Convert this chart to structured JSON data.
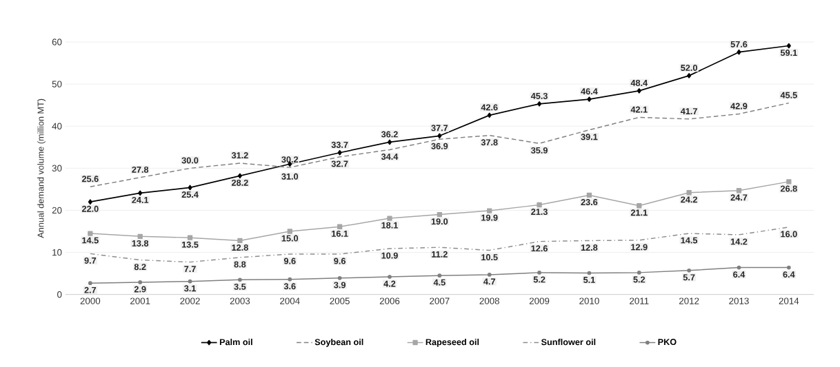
{
  "chart_data": {
    "type": "line",
    "ylabel": "Annual demand volume (million MT)",
    "categories": [
      "2000",
      "2001",
      "2002",
      "2003",
      "2004",
      "2005",
      "2006",
      "2007",
      "2008",
      "2009",
      "2010",
      "2011",
      "2012",
      "2013",
      "2014"
    ],
    "ylim": [
      0,
      60
    ],
    "yticks": [
      0,
      10,
      20,
      30,
      40,
      50,
      60
    ],
    "grid": "y",
    "legend": "bottom",
    "series": [
      {
        "name": "Palm oil",
        "color": "#000000",
        "marker": "diamond",
        "line_style": "solid",
        "values": [
          22.0,
          24.1,
          25.4,
          28.2,
          31.0,
          33.7,
          36.2,
          37.7,
          42.6,
          45.3,
          46.4,
          48.4,
          52.0,
          57.6,
          59.1
        ],
        "value_labels": [
          "22.0",
          "24.1",
          "25.4",
          "28.2",
          "31.0",
          "33.7",
          "36.2",
          "37.7",
          "42.6",
          "45.3",
          "46.4",
          "48.4",
          "52.0",
          "57.6",
          "59.1"
        ]
      },
      {
        "name": "Soybean oil",
        "color": "#808080",
        "marker": "none",
        "line_style": "dashed",
        "values": [
          25.6,
          27.8,
          30.0,
          31.2,
          30.2,
          32.7,
          34.4,
          36.9,
          37.8,
          35.9,
          39.1,
          42.1,
          41.7,
          42.9,
          45.5
        ],
        "value_labels": [
          "25.6",
          "27.8",
          "30.0",
          "31.2",
          "30.2",
          "32.7",
          "34.4",
          "36.9",
          "37.8",
          "35.9",
          "39.1",
          "42.1",
          "41.7",
          "42.9",
          "45.5"
        ]
      },
      {
        "name": "Rapeseed oil",
        "color": "#a6a6a6",
        "marker": "square",
        "line_style": "solid",
        "values": [
          14.5,
          13.8,
          13.5,
          12.8,
          15.0,
          16.1,
          18.1,
          19.0,
          19.9,
          21.3,
          23.6,
          21.1,
          24.2,
          24.7,
          26.8
        ],
        "value_labels": [
          "14.5",
          "13.8",
          "13.5",
          "12.8",
          "15.0",
          "16.1",
          "18.1",
          "19.0",
          "19.9",
          "21.3",
          "23.6",
          "21.1",
          "24.2",
          "24.7",
          "26.8"
        ]
      },
      {
        "name": "Sunflower oil",
        "color": "#8c8c8c",
        "marker": "none",
        "line_style": "dashdot",
        "values": [
          9.7,
          8.2,
          7.7,
          8.8,
          9.6,
          9.6,
          10.9,
          11.2,
          10.5,
          12.6,
          12.8,
          12.9,
          14.5,
          14.2,
          16.0
        ],
        "value_labels": [
          "9.7",
          "8.2",
          "7.7",
          "8.8",
          "9.6",
          "9.6",
          "10.9",
          "11.2",
          "10.5",
          "12.6",
          "12.8",
          "12.9",
          "14.5",
          "14.2",
          "16.0"
        ]
      },
      {
        "name": "PKO",
        "color": "#7f7f7f",
        "marker": "circle",
        "line_style": "solid",
        "values": [
          2.7,
          2.9,
          3.1,
          3.5,
          3.6,
          3.9,
          4.2,
          4.5,
          4.7,
          5.2,
          5.1,
          5.2,
          5.7,
          6.4,
          6.4
        ],
        "value_labels": [
          "2.7",
          "2.9",
          "3.1",
          "3.5",
          "3.6",
          "3.9",
          "4.2",
          "4.5",
          "4.7",
          "5.2",
          "5.1",
          "5.2",
          "5.7",
          "6.4",
          "6.4"
        ]
      }
    ]
  }
}
